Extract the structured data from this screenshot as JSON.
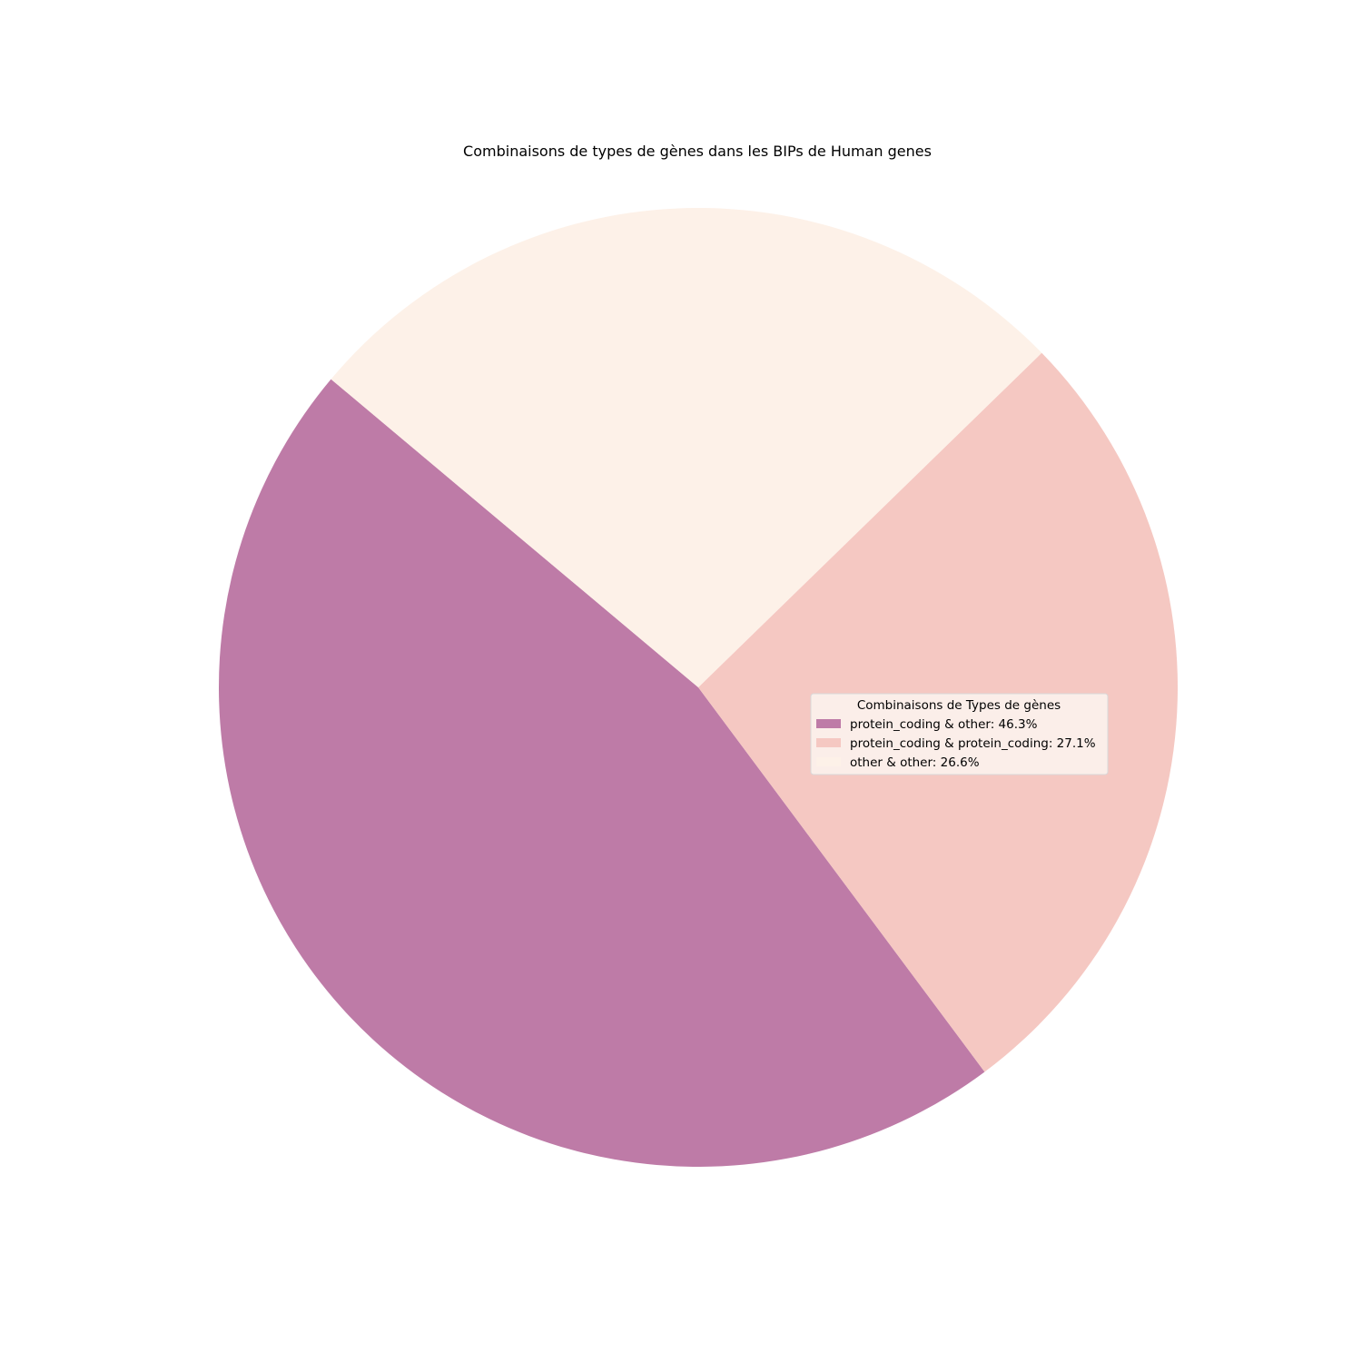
{
  "chart_data": {
    "type": "pie",
    "title": "Combinaisons de types de gènes dans les BIPs de Human genes",
    "legend_title": "Combinaisons de Types de gènes",
    "legend_position": "center-right",
    "start_angle_deg": 140,
    "direction": "counterclockwise",
    "slices": [
      {
        "label": "protein_coding & other: 46.3%",
        "value": 46.3,
        "color": "#be7ba7"
      },
      {
        "label": "protein_coding & protein_coding: 27.1%",
        "value": 27.1,
        "color": "#f5c8c2"
      },
      {
        "label": "other & other: 26.6%",
        "value": 26.6,
        "color": "#fdf1e8"
      }
    ]
  }
}
